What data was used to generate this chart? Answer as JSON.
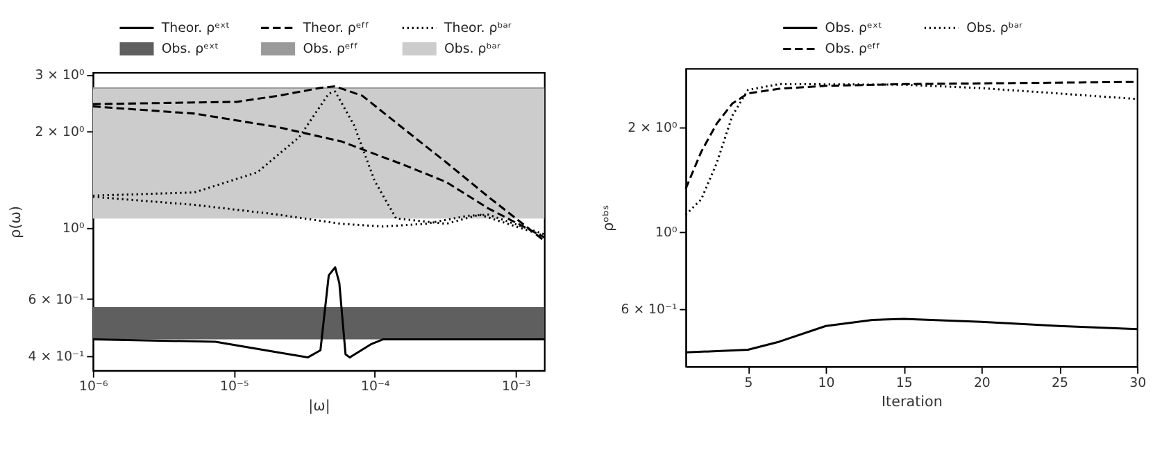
{
  "chart_data": [
    {
      "type": "line",
      "xlabel": "|ω|",
      "ylabel": "ρ(ω)",
      "log": "xy",
      "legend": "top",
      "xlim": [
        1e-06,
        0.0016
      ],
      "ylim": [
        0.36,
        3.05
      ],
      "xticks": [
        {
          "value": 1e-06,
          "label": "10⁻⁶"
        },
        {
          "value": 1e-05,
          "label": "10⁻⁵"
        },
        {
          "value": 0.0001,
          "label": "10⁻⁴"
        },
        {
          "value": 0.001,
          "label": "10⁻³"
        }
      ],
      "yticks": [
        {
          "value": 0.4,
          "label": "4 × 10⁻¹"
        },
        {
          "value": 0.6,
          "label": "6 × 10⁻¹"
        },
        {
          "value": 1,
          "label": "10⁰"
        },
        {
          "value": 2,
          "label": "2 × 10⁰"
        },
        {
          "value": 3,
          "label": "3 × 10⁰"
        }
      ],
      "bands": [
        {
          "axis": "y",
          "from": 0.45,
          "to": 0.567,
          "label": "Obs. ρᵉˣᵗ",
          "color": "#5f5f5f"
        },
        {
          "axis": "y",
          "from": 2.71,
          "to": 2.74,
          "label": "Obs. ρᵉᶠᶠ",
          "color": "#9a9a9a"
        },
        {
          "axis": "y",
          "from": 1.07,
          "to": 2.71,
          "label": "Obs. ρᵇᵃʳ",
          "color": "#cccccc"
        }
      ],
      "series": [
        {
          "name": "Theor. ρᵉˣᵗ",
          "color": "#000000",
          "line_style": "solid",
          "x": [
            1e-06,
            7.41e-06,
            1.47e-05,
            3.35e-05,
            4.12e-05,
            4.72e-05,
            5.24e-05,
            5.61e-05,
            6.21e-05,
            6.65e-05,
            9.38e-05,
            0.000115,
            0.0016
          ],
          "values": [
            0.45,
            0.442,
            0.42,
            0.395,
            0.416,
            0.712,
            0.754,
            0.673,
            0.404,
            0.395,
            0.434,
            0.45,
            0.45
          ]
        },
        {
          "name": "Theor. ρᵉᶠᶠ",
          "color": "#000000",
          "line_style": "dashed",
          "x": [
            1e-06,
            1.05e-05,
            2.07e-05,
            4.12e-05,
            5.24e-05,
            8.17e-05,
            0.000162,
            0.000322,
            0.00064,
            0.0016
          ],
          "values": [
            2.43,
            2.47,
            2.58,
            2.73,
            2.76,
            2.58,
            2.03,
            1.6,
            1.25,
            0.912
          ]
        },
        {
          "color": "#000000",
          "line_style": "dashed",
          "x": [
            1e-06,
            5.26e-06,
            2.07e-05,
            5.79e-05,
            0.000162,
            0.000322,
            0.00064,
            0.0016
          ],
          "values": [
            2.39,
            2.27,
            2.06,
            1.86,
            1.57,
            1.39,
            1.15,
            0.935
          ]
        },
        {
          "name": "Theor. ρᵇᵃʳ",
          "color": "#000000",
          "line_style": "dotted",
          "x": [
            1e-06,
            5.26e-06,
            1.47e-05,
            2.92e-05,
            4.72e-05,
            5.24e-05,
            7.13e-05,
            0.0001,
            0.000142,
            0.000322,
            0.000557,
            0.0016
          ],
          "values": [
            1.26,
            1.29,
            1.49,
            1.92,
            2.62,
            2.66,
            2.09,
            1.4,
            1.07,
            1.03,
            1.1,
            0.945
          ]
        },
        {
          "color": "#000000",
          "line_style": "dotted",
          "x": [
            1e-06,
            5.26e-06,
            2.07e-05,
            5.79e-05,
            0.000115,
            0.000229,
            0.000454,
            0.00064,
            0.0016
          ],
          "values": [
            1.25,
            1.18,
            1.1,
            1.03,
            1.01,
            1.03,
            1.09,
            1.1,
            0.955
          ]
        }
      ]
    },
    {
      "type": "line",
      "xlabel": "Iteration",
      "ylabel": "ρᵒᵇˢ",
      "log": "y",
      "legend": "top",
      "xlim": [
        1,
        30
      ],
      "ylim": [
        0.41,
        2.95
      ],
      "xticks": [
        5,
        10,
        15,
        20,
        25,
        30
      ],
      "yticks": [
        {
          "value": 0.6,
          "label": "6 × 10⁻¹"
        },
        {
          "value": 1,
          "label": "10⁰"
        },
        {
          "value": 2,
          "label": "2 × 10⁰"
        }
      ],
      "series": [
        {
          "name": "Obs. ρᵉˣᵗ",
          "color": "#000000",
          "line_style": "solid",
          "x": [
            1,
            5,
            7,
            10,
            13,
            15,
            20,
            25,
            30
          ],
          "values": [
            0.45,
            0.458,
            0.483,
            0.536,
            0.558,
            0.562,
            0.551,
            0.536,
            0.525
          ]
        },
        {
          "name": "Obs. ρᵇᵃʳ",
          "color": "#000000",
          "line_style": "dotted",
          "x": [
            1,
            2,
            3,
            4,
            5,
            7,
            15,
            20,
            25,
            30
          ],
          "values": [
            1.12,
            1.24,
            1.58,
            2.16,
            2.56,
            2.66,
            2.65,
            2.59,
            2.5,
            2.41
          ]
        },
        {
          "name": "Obs. ρᵉᶠᶠ",
          "color": "#000000",
          "line_style": "dashed",
          "x": [
            1,
            2,
            3,
            4,
            5,
            7,
            10,
            15,
            30
          ],
          "values": [
            1.33,
            1.7,
            2.05,
            2.34,
            2.5,
            2.58,
            2.63,
            2.66,
            2.7
          ]
        }
      ]
    }
  ]
}
